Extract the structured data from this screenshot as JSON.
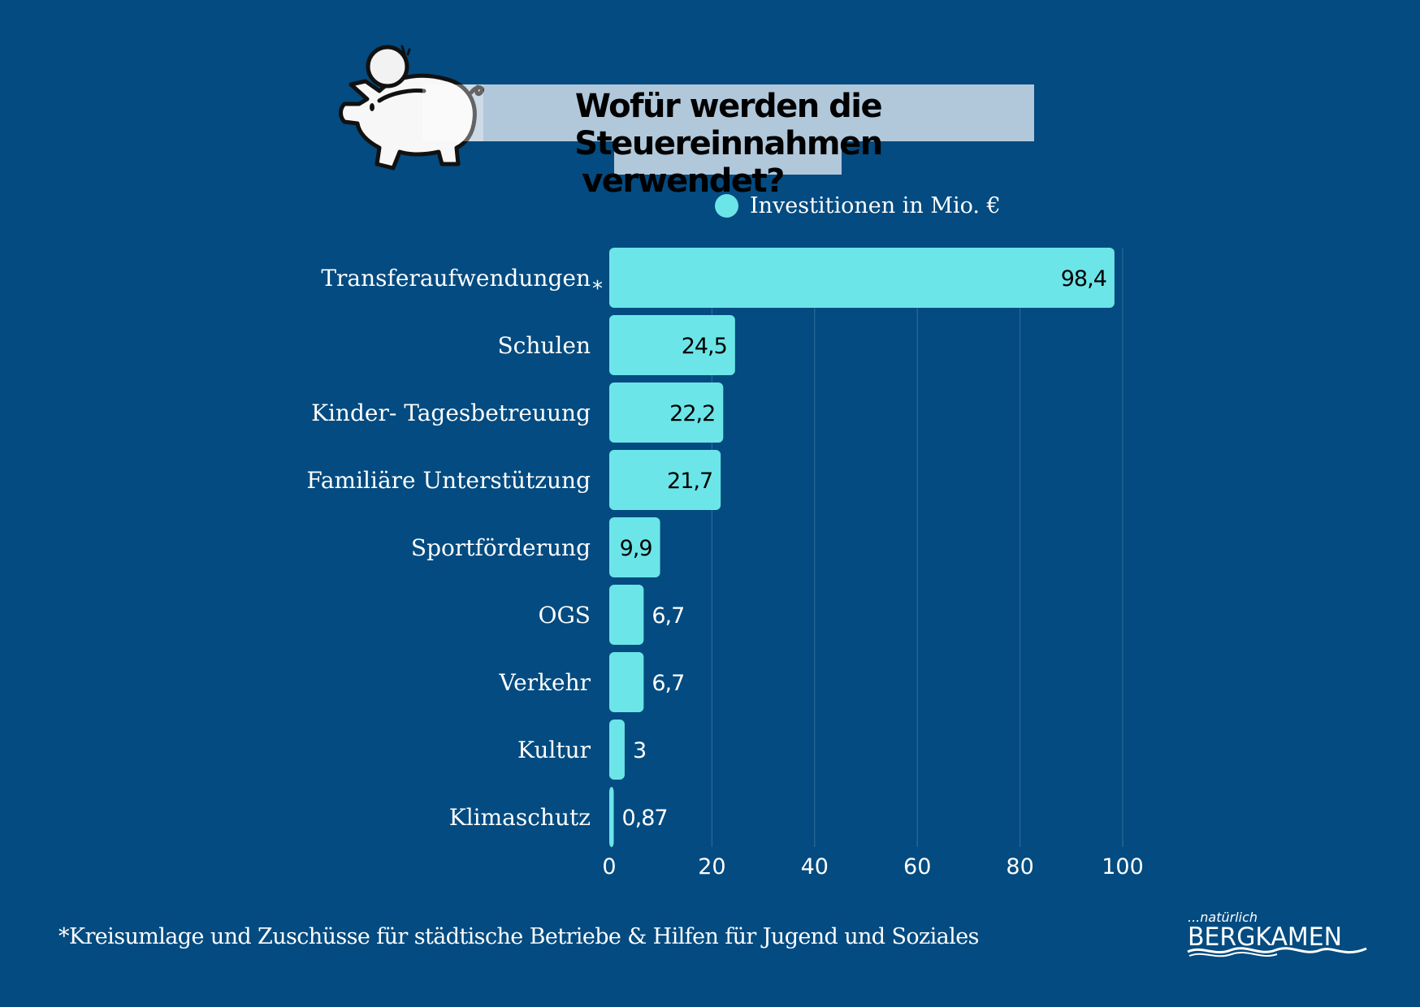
{
  "title": {
    "line1": "Wofür werden die Steuereinnahmen",
    "line2": "verwendet?"
  },
  "footnote": "*Kreisumlage und Zuschüsse  für städtische Betriebe & Hilfen für Jugend und Soziales",
  "logo": {
    "tagline": "...natürlich",
    "name": "BERGKAMEN"
  },
  "colors": {
    "background": "#034b80",
    "bar": "#6ce5e8",
    "title_box": "#b1c8db",
    "gridline": "#2a6a9a"
  },
  "chart_data": {
    "type": "bar",
    "orientation": "horizontal",
    "title": "Wofür werden die Steuereinnahmen verwendet?",
    "legend": {
      "entries": [
        "Investitionen in Mio. €"
      ],
      "placement": "top-right"
    },
    "categories": [
      "Transferaufwendungen*",
      "Schulen",
      "Kinder- Tagesbetreuung",
      "Familiäre Unterstützung",
      "Sportförderung",
      "OGS",
      "Verkehr",
      "Kultur",
      "Klimaschutz"
    ],
    "series": [
      {
        "name": "Investitionen in Mio. €",
        "values": [
          98.4,
          24.5,
          22.2,
          21.7,
          9.9,
          6.7,
          6.7,
          3,
          0.87
        ],
        "labels": [
          "98,4",
          "24,5",
          "22,2",
          "21,7",
          "9,9",
          "6,7",
          "6,7",
          "3",
          "0,87"
        ]
      }
    ],
    "xlabel": "",
    "ylabel": "",
    "xlim": [
      0,
      100
    ],
    "xticks": [
      0,
      20,
      40,
      60,
      80,
      100
    ],
    "xtick_labels": [
      "0",
      "20",
      "40",
      "60",
      "80",
      "100"
    ],
    "grid": true
  }
}
